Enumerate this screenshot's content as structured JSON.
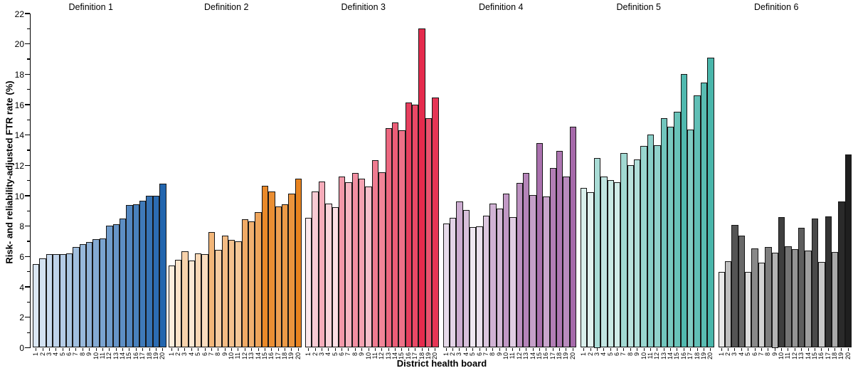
{
  "chart_data": {
    "type": "bar",
    "title": "",
    "xlabel": "District health board",
    "ylabel": "Risk- and reliability-adjusted FTR rate (%)",
    "ylim": [
      0,
      22
    ],
    "y_major_ticks": [
      0,
      2,
      4,
      6,
      8,
      10,
      12,
      14,
      16,
      18,
      20,
      22
    ],
    "y_minor_tick_step": 1,
    "grid": false,
    "legend": "none",
    "bar_outline_color": "#161616",
    "shading_rule": "bars within each panel shaded light-to-dark by ascending value rank",
    "categories": [
      "1",
      "2",
      "3",
      "4",
      "5",
      "6",
      "7",
      "8",
      "9",
      "10",
      "11",
      "12",
      "13",
      "14",
      "15",
      "16",
      "17",
      "18",
      "19",
      "20"
    ],
    "groups": [
      {
        "label": "Definition 1",
        "color_light": "#dce8f5",
        "color_dark": "#2265ae",
        "values": [
          5.5,
          5.9,
          6.15,
          6.15,
          6.15,
          6.2,
          6.65,
          6.8,
          6.95,
          7.15,
          7.2,
          8.05,
          8.15,
          8.5,
          9.4,
          9.45,
          9.7,
          10.0,
          10.0,
          10.8
        ]
      },
      {
        "label": "Definition 2",
        "color_light": "#fdeedd",
        "color_dark": "#e8831f",
        "values": [
          5.4,
          5.8,
          6.35,
          5.75,
          6.2,
          6.15,
          7.6,
          6.45,
          7.4,
          7.1,
          7.0,
          8.45,
          8.3,
          8.95,
          10.65,
          10.3,
          9.3,
          9.45,
          10.15,
          11.15
        ]
      },
      {
        "label": "Definition 3",
        "color_light": "#fce8ec",
        "color_dark": "#e52b4d",
        "values": [
          8.55,
          10.3,
          10.95,
          9.5,
          9.25,
          11.25,
          10.9,
          11.5,
          11.15,
          10.6,
          12.35,
          11.55,
          14.45,
          14.85,
          14.3,
          16.15,
          16.0,
          21.0,
          15.1,
          16.45
        ]
      },
      {
        "label": "Definition 4",
        "color_light": "#efe7f2",
        "color_dark": "#a66aaa",
        "values": [
          8.2,
          8.55,
          9.65,
          9.05,
          7.95,
          8.0,
          8.7,
          9.5,
          9.15,
          10.15,
          8.6,
          10.85,
          11.5,
          10.05,
          13.45,
          9.95,
          11.85,
          12.95,
          11.25,
          14.55
        ]
      },
      {
        "label": "Definition 5",
        "color_light": "#e1f2ef",
        "color_dark": "#49b6ab",
        "values": [
          10.5,
          10.25,
          12.5,
          11.25,
          11.05,
          10.9,
          12.8,
          12.0,
          12.4,
          13.3,
          14.05,
          13.35,
          15.1,
          14.55,
          15.55,
          18.0,
          14.35,
          16.6,
          17.45,
          19.1
        ]
      },
      {
        "label": "Definition 6",
        "color_light": "#e8e8e8",
        "color_dark": "#1f1f1f",
        "values": [
          5.0,
          5.7,
          8.1,
          7.4,
          5.0,
          6.55,
          5.6,
          6.65,
          6.25,
          8.6,
          6.7,
          6.5,
          7.9,
          6.4,
          8.5,
          5.65,
          8.65,
          6.3,
          9.65,
          12.7
        ]
      }
    ]
  }
}
